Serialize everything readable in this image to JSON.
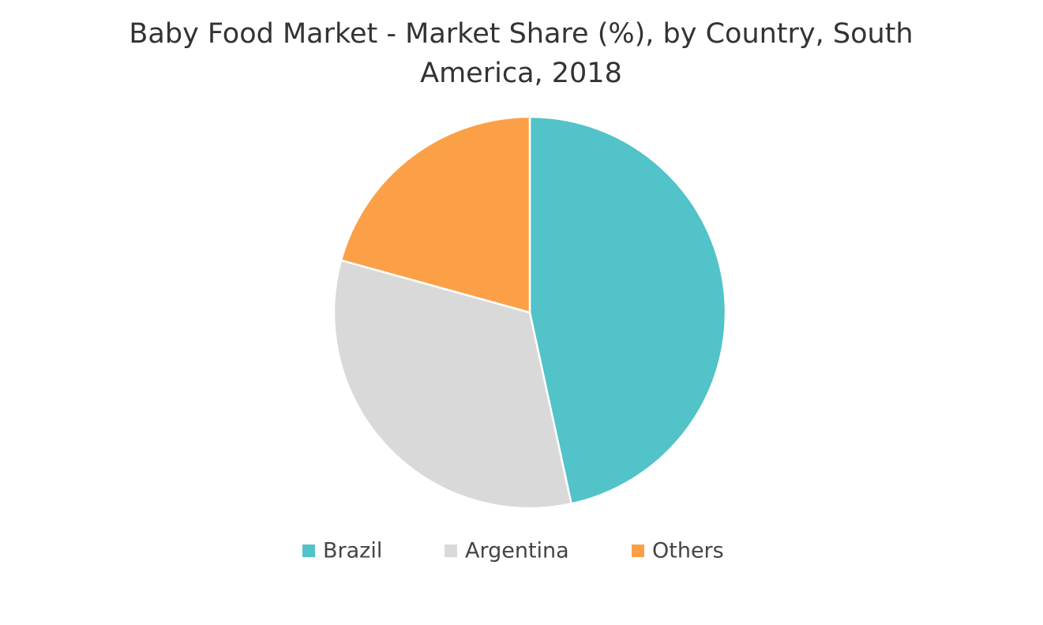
{
  "chart_data": {
    "type": "pie",
    "title": "Baby Food Market - Market Share (%), by Country, South America, 2018",
    "categories": [
      "Brazil",
      "Argentina",
      "Others"
    ],
    "values": [
      46.6,
      32.7,
      20.7
    ],
    "colors": [
      "#52c3c8",
      "#d9d9d9",
      "#fca047"
    ]
  }
}
